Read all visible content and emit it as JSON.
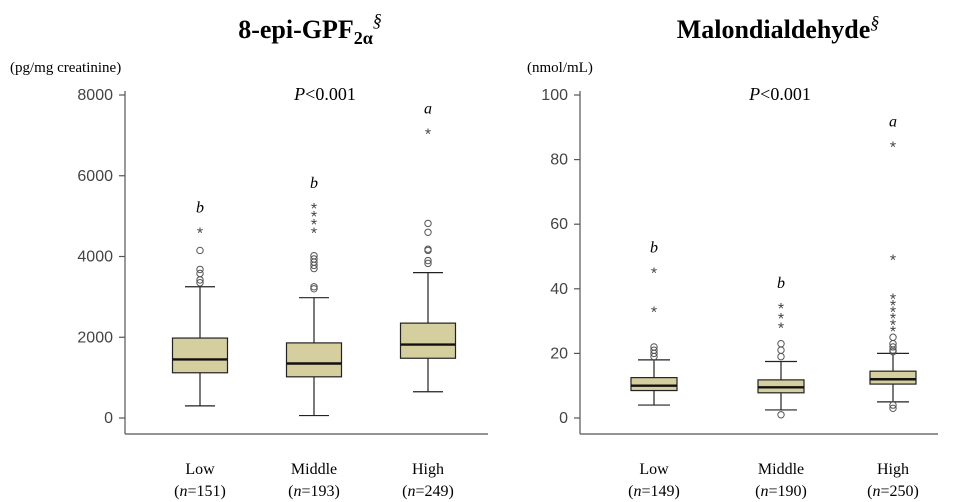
{
  "chart_data": [
    {
      "type": "box",
      "title_main": "8-epi-GPF",
      "title_sub": "2α",
      "title_sup": "§",
      "ylabel": "(pg/mg creatinine)",
      "ylim": [
        0,
        8000
      ],
      "yticks": [
        0,
        2000,
        4000,
        6000,
        8000
      ],
      "annotation": "P<0.001",
      "annotation_p": "P",
      "annotation_rest": "<0.001",
      "groups": [
        {
          "label": "Low",
          "n_text": "151",
          "letter": "b",
          "whisker_low": 300,
          "q1": 1120,
          "median": 1450,
          "q3": 1980,
          "whisker_high": 3250,
          "outliers": [
            3350,
            3420,
            3580,
            3680,
            4150
          ],
          "extremes": [
            4600
          ]
        },
        {
          "label": "Middle",
          "n_text": "193",
          "letter": "b",
          "whisker_low": 60,
          "q1": 1020,
          "median": 1350,
          "q3": 1860,
          "whisker_high": 2980,
          "outliers": [
            3200,
            3250,
            3700,
            3780,
            3860,
            3940,
            4020
          ],
          "extremes": [
            4600,
            4800,
            5000,
            5200
          ]
        },
        {
          "label": "High",
          "n_text": "249",
          "letter": "a",
          "whisker_low": 650,
          "q1": 1480,
          "median": 1820,
          "q3": 2350,
          "whisker_high": 3600,
          "outliers": [
            3830,
            3900,
            4150,
            4180,
            4600,
            4820
          ],
          "extremes": [
            7050
          ]
        }
      ]
    },
    {
      "type": "box",
      "title_main": "Malondialdehyde",
      "title_sub": "",
      "title_sup": "§",
      "ylabel": "(nmol/mL)",
      "ylim": [
        0,
        100
      ],
      "yticks": [
        0,
        20,
        40,
        60,
        80,
        100
      ],
      "annotation": "P<0.001",
      "annotation_p": "P",
      "annotation_rest": "<0.001",
      "groups": [
        {
          "label": "Low",
          "n_text": "149",
          "letter": "b",
          "whisker_low": 4,
          "q1": 8.5,
          "median": 10,
          "q3": 12.5,
          "whisker_high": 18,
          "outliers": [
            19,
            20,
            21,
            22
          ],
          "extremes": [
            33,
            45
          ]
        },
        {
          "label": "Middle",
          "n_text": "190",
          "letter": "b",
          "whisker_low": 2.5,
          "q1": 7.8,
          "median": 9.5,
          "q3": 11.8,
          "whisker_high": 17.5,
          "outliers": [
            1,
            19,
            21,
            23
          ],
          "extremes": [
            28,
            31,
            34
          ]
        },
        {
          "label": "High",
          "n_text": "250",
          "letter": "a",
          "whisker_low": 5,
          "q1": 10.5,
          "median": 12,
          "q3": 14.5,
          "whisker_high": 20,
          "outliers": [
            3,
            4,
            20.5,
            21,
            22,
            23,
            25
          ],
          "extremes": [
            27,
            29,
            31,
            33,
            35,
            37,
            49,
            84
          ]
        }
      ]
    }
  ],
  "n_prefix": "(",
  "n_italic": "n",
  "n_eq": "=",
  "n_suffix": ")",
  "colors": {
    "box_fill": "#d5cfa0",
    "axis": "#555555",
    "outlier": "#555555"
  }
}
